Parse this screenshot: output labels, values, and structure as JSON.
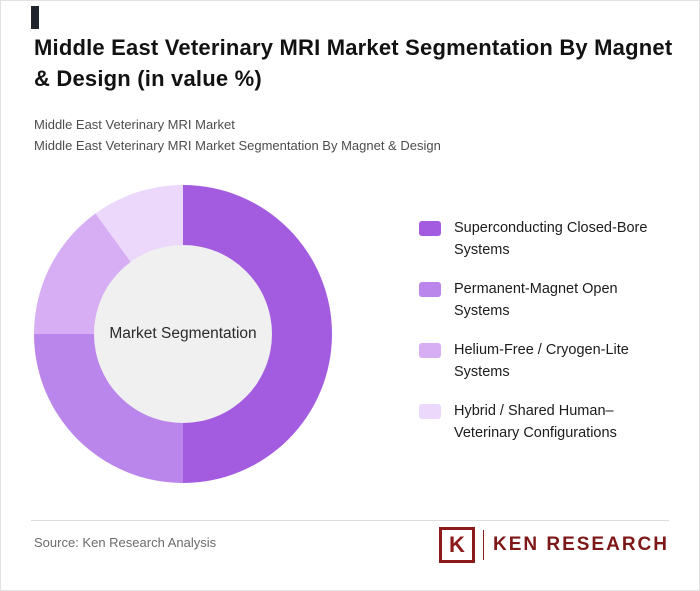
{
  "title": "Middle East Veterinary MRI Market Segmentation By Magnet & Design (in value %)",
  "subtitle_line1": "Middle East Veterinary MRI Market",
  "subtitle_line2": "Middle East Veterinary MRI Market Segmentation By Magnet & Design",
  "chart_data": {
    "type": "pie",
    "donut": true,
    "center_label": "Market Segmentation",
    "legend_position": "right",
    "start_angle_deg": 0,
    "segments": [
      {
        "label": "Superconducting Closed-Bore Systems",
        "value": 50,
        "color": "#a35ce0"
      },
      {
        "label": "Permanent-Magnet Open Systems",
        "value": 25,
        "color": "#bb86ec"
      },
      {
        "label": "Helium-Free / Cryogen-Lite Systems",
        "value": 15,
        "color": "#d7aef4"
      },
      {
        "label": "Hybrid / Shared Human–Veterinary Configurations",
        "value": 10,
        "color": "#ebd8fb"
      }
    ]
  },
  "legend": [
    {
      "line1": "Superconducting Closed-Bore",
      "line2": "Systems"
    },
    {
      "line1": "Permanent-Magnet Open",
      "line2": "Systems"
    },
    {
      "line1": "Helium-Free / Cryogen-Lite",
      "line2": "Systems"
    },
    {
      "line1": "Hybrid / Shared Human–",
      "line2": "Veterinary Configurations"
    }
  ],
  "footer": {
    "source": "Source: Ken Research Analysis",
    "logo_letter": "K",
    "logo_text": "KEN RESEARCH",
    "logo_color": "#8c1a1a"
  },
  "colors": {
    "accent_bar": "#20242c",
    "donut_hole": "#f0f0f0",
    "divider": "#dcdcdc"
  }
}
